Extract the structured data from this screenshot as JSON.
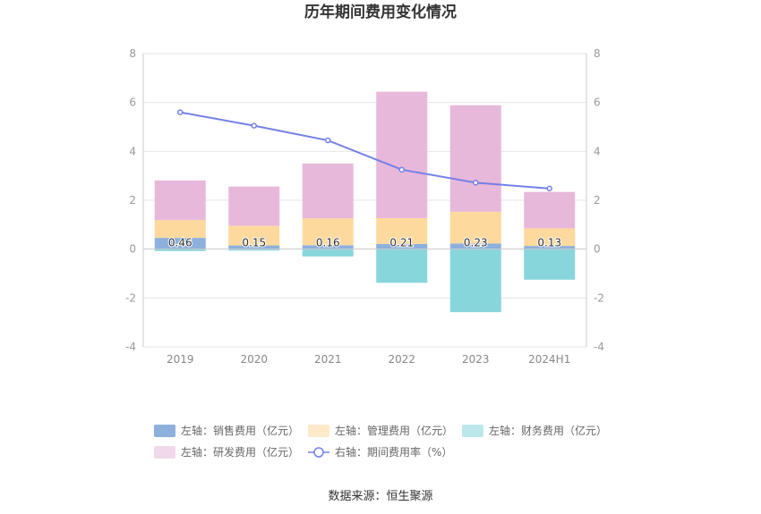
{
  "chart_data": {
    "type": "bar",
    "title": "历年期间费用变化情况",
    "categories": [
      "2019",
      "2020",
      "2021",
      "2022",
      "2023",
      "2024H1"
    ],
    "left_axis": {
      "ylim": [
        -4,
        8
      ],
      "ticks": [
        -4,
        -2,
        0,
        2,
        4,
        6,
        8
      ]
    },
    "right_axis": {
      "ylim": [
        -4,
        8
      ],
      "ticks": [
        -4,
        -2,
        0,
        2,
        4,
        6,
        8
      ]
    },
    "stacked": true,
    "series": [
      {
        "name": "左轴：销售费用（亿元）",
        "axis": "left",
        "kind": "bar",
        "color": "#8eb0dc",
        "values": [
          0.46,
          0.15,
          0.16,
          0.21,
          0.23,
          0.13
        ],
        "labels": [
          "0.46",
          "0.15",
          "0.16",
          "0.21",
          "0.23",
          "0.13"
        ]
      },
      {
        "name": "左轴：管理费用（亿元）",
        "axis": "left",
        "kind": "bar",
        "color": "#fdd99e",
        "values": [
          0.73,
          0.8,
          1.1,
          1.06,
          1.3,
          0.72
        ]
      },
      {
        "name": "左轴：财务费用（亿元）",
        "axis": "left",
        "kind": "bar",
        "color": "#87d6db",
        "values": [
          -0.08,
          -0.06,
          -0.3,
          -1.38,
          -2.58,
          -1.25
        ]
      },
      {
        "name": "左轴：研发费用（亿元）",
        "axis": "left",
        "kind": "bar",
        "color": "#e7b8da",
        "values": [
          1.62,
          1.61,
          2.24,
          5.17,
          4.36,
          1.49
        ]
      },
      {
        "name": "右轴：期间费用率（%）",
        "axis": "right",
        "kind": "line",
        "color": "#7480e8",
        "values": [
          5.6,
          5.05,
          4.45,
          3.25,
          2.72,
          2.48
        ]
      }
    ],
    "grid": true,
    "legend_position": "bottom",
    "source": "数据来源：恒生聚源"
  }
}
